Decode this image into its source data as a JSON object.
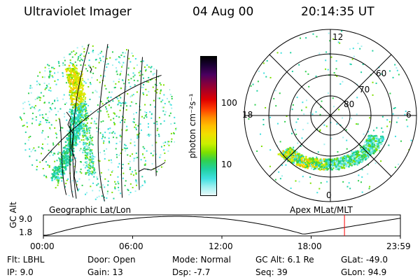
{
  "header": {
    "instrument": "Ultraviolet Imager",
    "date": "04 Aug 00",
    "time": "20:14:35 UT"
  },
  "colorbar": {
    "unit_label": "photon cm⁻²s⁻¹",
    "ticks": [
      "100",
      "10"
    ],
    "colors": [
      "#000000",
      "#1a0033",
      "#4a0060",
      "#800040",
      "#b00020",
      "#e00000",
      "#ff4000",
      "#ff8c00",
      "#ffc000",
      "#f0e000",
      "#c8f000",
      "#7ee000",
      "#30d050",
      "#20d0a0",
      "#40e0e0",
      "#a0f0f0",
      "#e8fafa"
    ]
  },
  "polar": {
    "mlt_labels": [
      "12",
      "18",
      "6",
      "0"
    ],
    "lat_labels": [
      "60",
      "70",
      "80"
    ]
  },
  "geo_label": "Geographic Lat/Lon",
  "apex_label": "Apex MLat/MLT",
  "altitude_plot": {
    "y_label": "GC Alt",
    "y_ticks": [
      "9.0",
      "1.8"
    ],
    "x_ticks": [
      "00:00",
      "06:00",
      "12:00",
      "18:00",
      "23:59"
    ],
    "marker_color": "#ff0000",
    "marker_time_hours": 20.24
  },
  "info": {
    "flt": "Flt: LBHL",
    "ip": "IP:  9.0",
    "door": "Door: Open",
    "gain": "Gain: 13",
    "mode": "Mode: Normal",
    "dsp": "Dsp:    -7.7",
    "gcalt": "GC Alt: 6.1 Re",
    "seq": "Seq: 39",
    "glat": "GLat: -49.0",
    "glon": "GLon:  94.9"
  }
}
